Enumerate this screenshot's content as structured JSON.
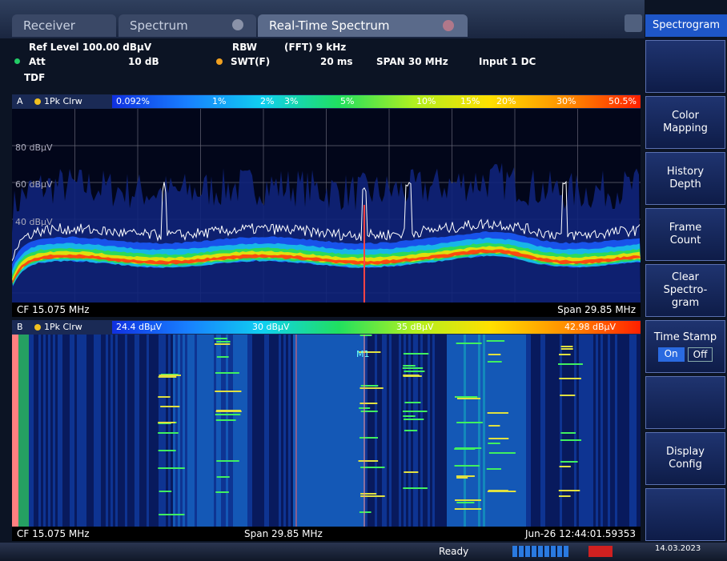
{
  "tabs": [
    "Receiver",
    "Spectrum",
    "Real-Time Spectrum"
  ],
  "softkeys": {
    "title": "Spectrogram",
    "color_mapping": [
      "Color",
      "Mapping"
    ],
    "history_depth": [
      "History",
      "Depth"
    ],
    "frame_count": [
      "Frame",
      "Count"
    ],
    "clear": [
      "Clear",
      "Spectro-",
      "gram"
    ],
    "time_stamp": "Time Stamp",
    "toggle": [
      "On",
      "Off"
    ],
    "display_config": [
      "Display",
      "Config"
    ]
  },
  "info": {
    "ref_level": "Ref Level 100.00 dBµV",
    "rbw": "RBW",
    "rbw_value": "(FFT) 9 kHz",
    "att": "Att",
    "att_value": "10 dB",
    "swt": "SWT(F)",
    "swt_value": "20 ms",
    "span": "SPAN 30 MHz",
    "input": "Input 1 DC",
    "tdf": "TDF"
  },
  "pane_a": {
    "label": "A",
    "trace": "1Pk Clrw",
    "scale": [
      "0.092%",
      "1%",
      "2%",
      "3%",
      "5%",
      "10%",
      "15%",
      "20%",
      "30%",
      "50.5%"
    ],
    "levels": [
      "80 dBµV",
      "60 dBµV",
      "40 dBµV"
    ],
    "cf": "CF 15.075 MHz",
    "span": "Span 29.85 MHz"
  },
  "pane_b": {
    "label": "B",
    "trace": "1Pk Clrw",
    "scale": [
      "24.4 dBµV",
      "30 dBµV",
      "35 dBµV",
      "42.98 dBµV"
    ],
    "marker": "M1",
    "cf": "CF 15.075 MHz",
    "span": "Span 29.85 MHz",
    "timestamp": "Jun-26 12:44:01.59353"
  },
  "status": {
    "state": "Ready",
    "date": "14.03.2023"
  }
}
